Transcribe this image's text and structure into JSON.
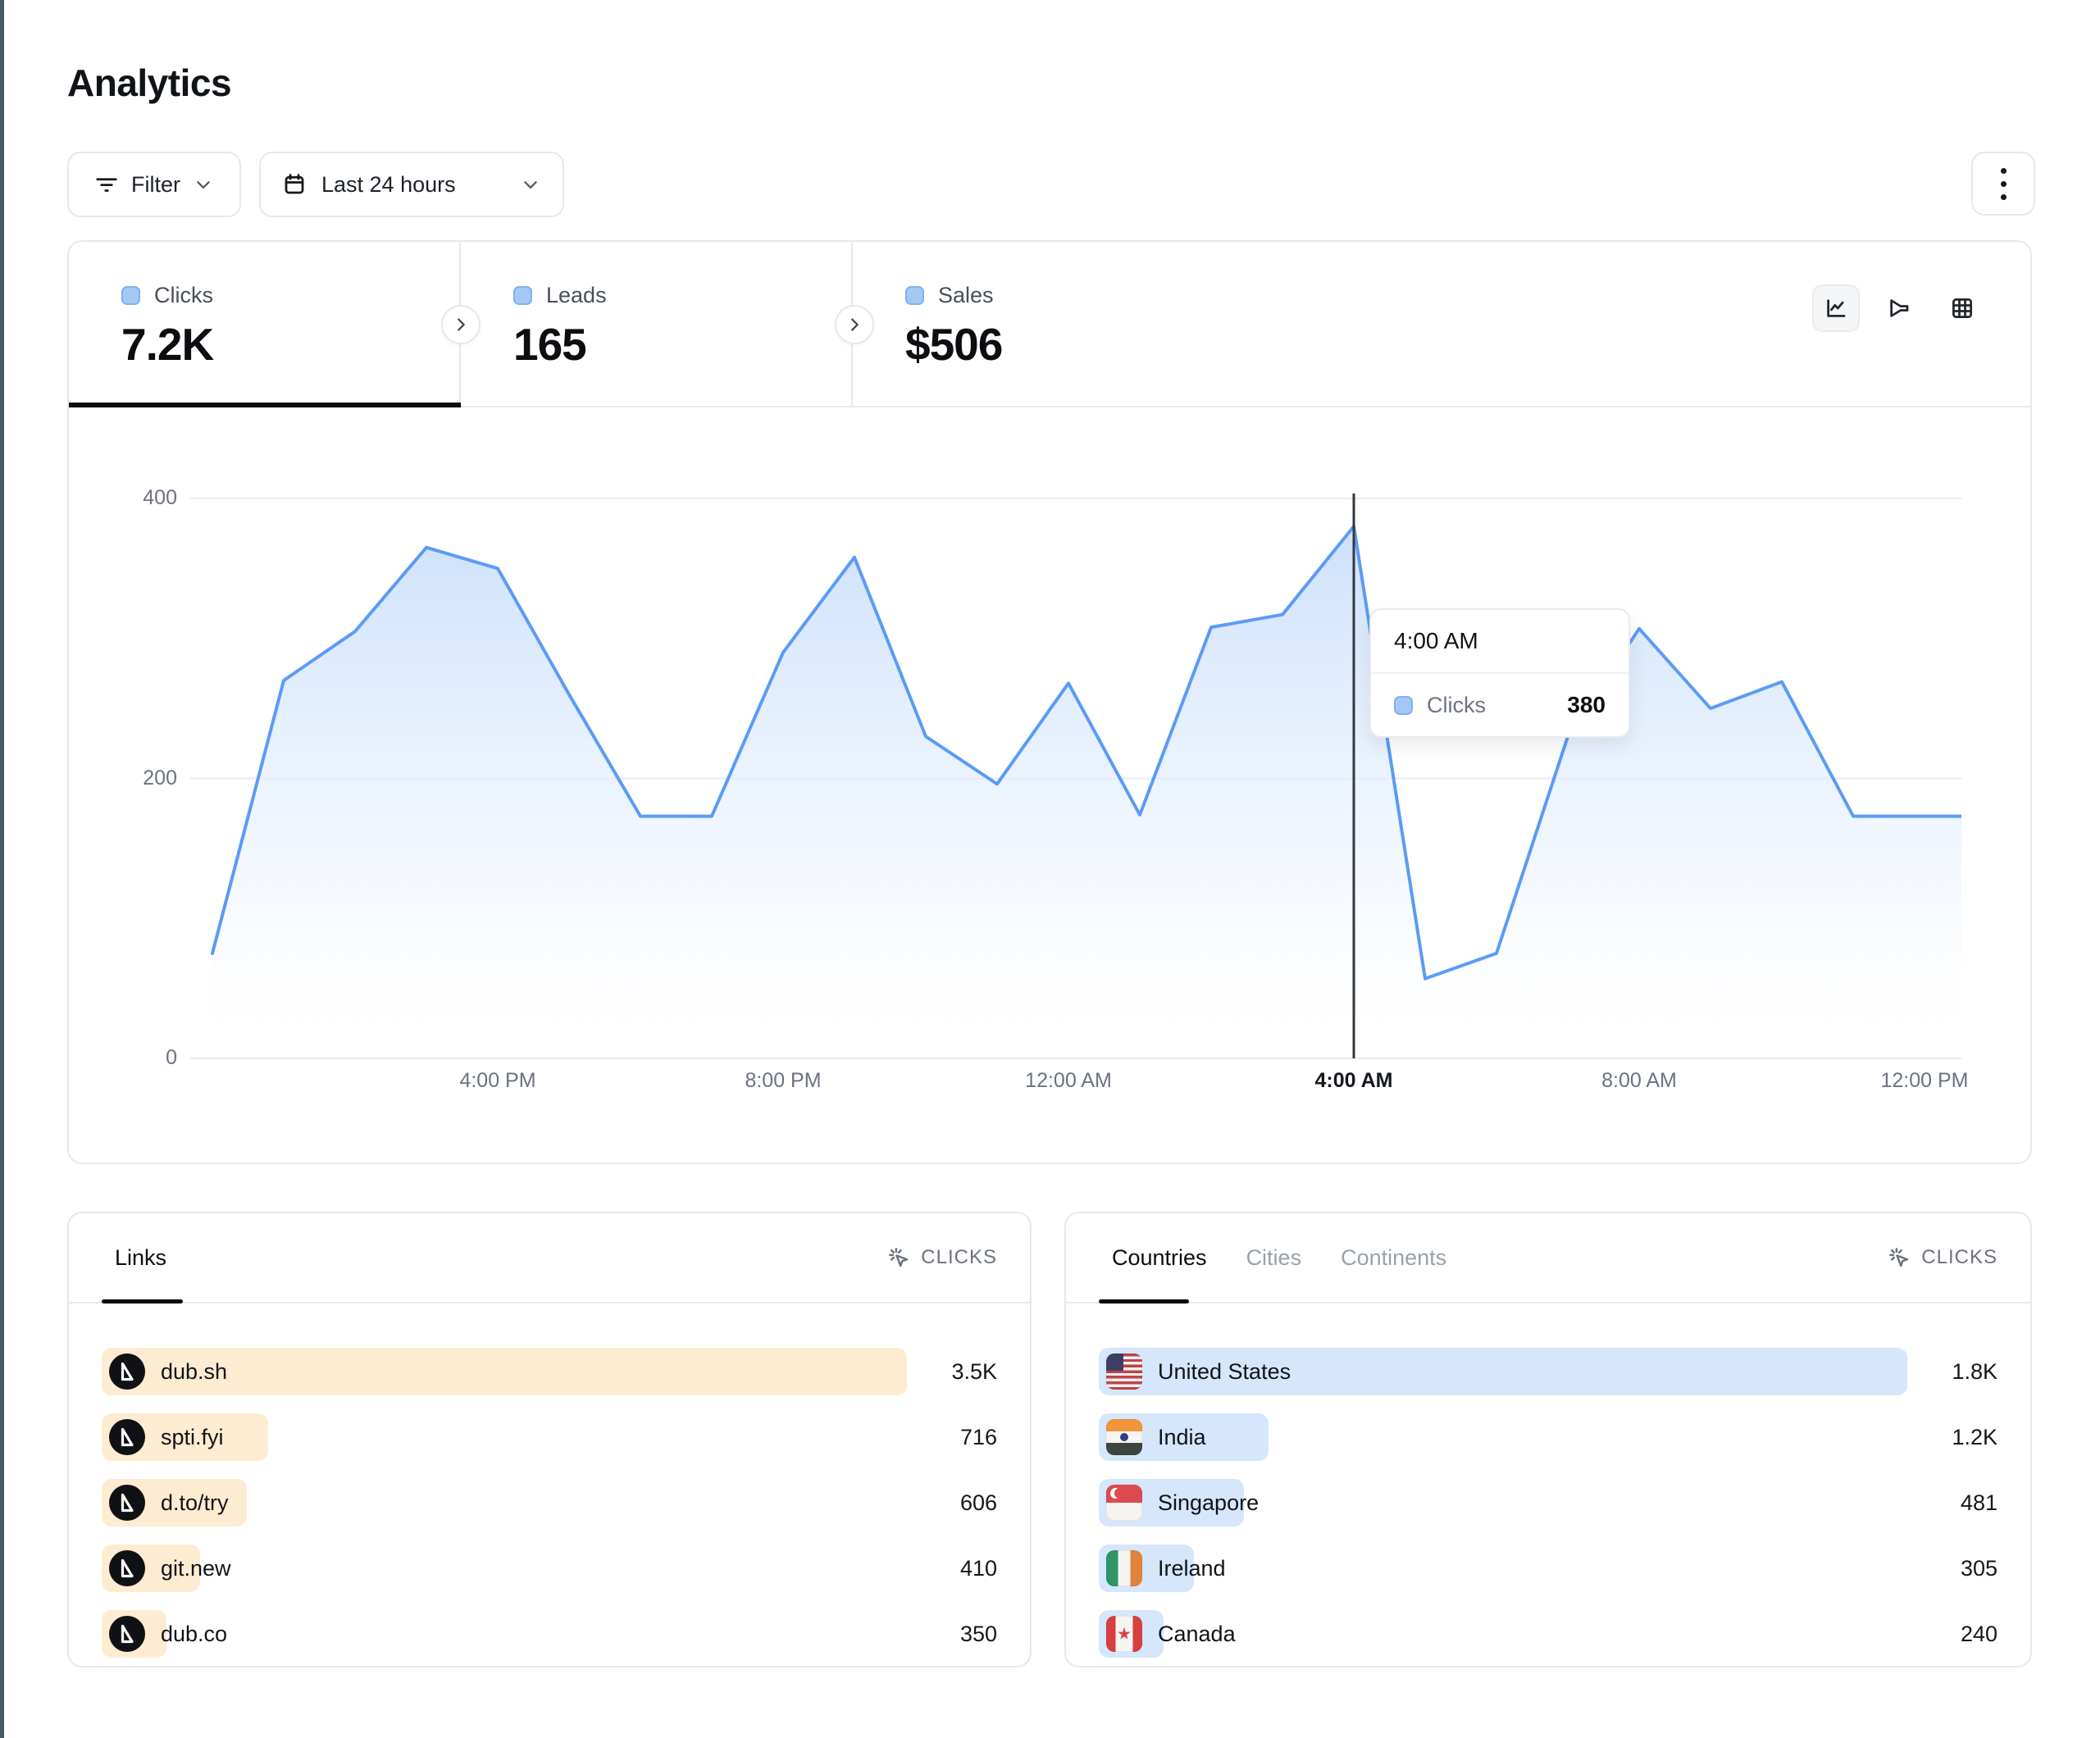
{
  "page": {
    "title": "Analytics"
  },
  "toolbar": {
    "filter_label": "Filter",
    "date_range_label": "Last 24 hours"
  },
  "stats": {
    "tabs": [
      {
        "label": "Clicks",
        "value": "7.2K",
        "active": true
      },
      {
        "label": "Leads",
        "value": "165",
        "active": false
      },
      {
        "label": "Sales",
        "value": "$506",
        "active": false
      }
    ]
  },
  "chart_data": {
    "type": "area",
    "series": [
      {
        "name": "Clicks",
        "values": [
          75,
          270,
          305,
          365,
          350,
          260,
          173,
          173,
          290,
          358,
          230,
          196,
          268,
          174,
          308,
          317,
          380,
          57,
          75,
          230,
          307,
          250,
          269,
          173,
          173
        ]
      }
    ],
    "x_description": "hourly points over the last 24 hours",
    "xticks": [
      "4:00 PM",
      "8:00 PM",
      "12:00 AM",
      "4:00 AM",
      "8:00 AM",
      "12:00 PM"
    ],
    "tick_indices": [
      4,
      8,
      12,
      16,
      20,
      24
    ],
    "active_tick_index": 3,
    "yticks": [
      0,
      200,
      400
    ],
    "ylim": [
      0,
      400
    ],
    "grid": "horizontal",
    "cursor_index": 16,
    "tooltip": {
      "time": "4:00 AM",
      "series": "Clicks",
      "value": "380"
    }
  },
  "links_panel": {
    "tab": "Links",
    "metric": "CLICKS",
    "rows": [
      {
        "label": "dub.sh",
        "value": "3.5K",
        "bar_pct": 100
      },
      {
        "label": "spti.fyi",
        "value": "716",
        "bar_pct": 20.7
      },
      {
        "label": "d.to/try",
        "value": "606",
        "bar_pct": 18
      },
      {
        "label": "git.new",
        "value": "410",
        "bar_pct": 12.2
      },
      {
        "label": "dub.co",
        "value": "350",
        "bar_pct": 8
      }
    ]
  },
  "countries_panel": {
    "tabs": [
      "Countries",
      "Cities",
      "Continents"
    ],
    "active_tab_index": 0,
    "metric": "CLICKS",
    "rows": [
      {
        "label": "United States",
        "flag": "us",
        "value": "1.8K",
        "bar_pct": 100
      },
      {
        "label": "India",
        "flag": "in",
        "value": "1.2K",
        "bar_pct": 21
      },
      {
        "label": "Singapore",
        "flag": "sg",
        "value": "481",
        "bar_pct": 18
      },
      {
        "label": "Ireland",
        "flag": "ie",
        "value": "305",
        "bar_pct": 11.8
      },
      {
        "label": "Canada",
        "flag": "ca",
        "value": "240",
        "bar_pct": 8
      }
    ]
  },
  "icons": {
    "filter": "filter-lines",
    "date": "calendar",
    "dropdown": "chevron-down",
    "more": "kebab-vertical",
    "view_line": "line-chart",
    "view_funnel": "funnel",
    "view_table": "table-grid",
    "metric": "cursor-click",
    "stat_next": "chevron-right",
    "link_favicon": "dub-logo",
    "flags": [
      "us",
      "in",
      "sg",
      "ie",
      "ca"
    ]
  },
  "colors": {
    "line": "#5b9bf6",
    "legend_swatch": "#a4c8f6",
    "links_bar": "#fdecd2",
    "countries_bar": "#d6e6fb",
    "border": "#e6e8eb",
    "left_edge": "#475a5f"
  }
}
